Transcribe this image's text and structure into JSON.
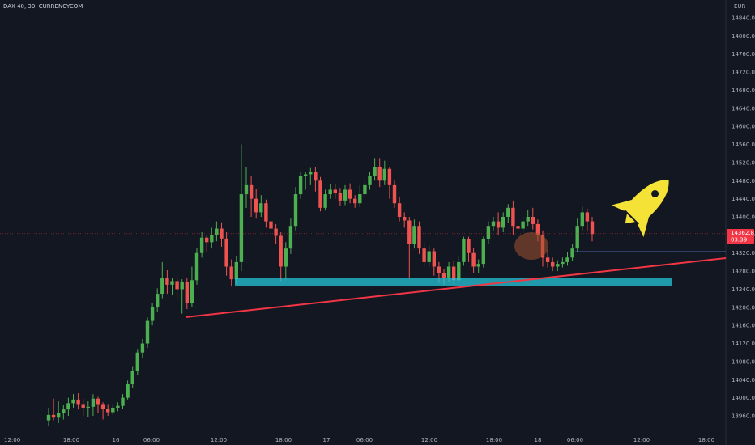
{
  "header": {
    "title": "DAX 40, 30, CURRENCYCOM",
    "currency": "EUR"
  },
  "price_tag": {
    "price": "14362.8",
    "countdown": "03:39"
  },
  "colors": {
    "background": "#131722",
    "up": "#26a69a",
    "up_body": "#4caf50",
    "down": "#ef5350",
    "trendline": "#f23645",
    "zone": "#26c6da",
    "marker": "#f5e236",
    "circle": "#a0522d"
  },
  "chart_data": {
    "type": "candlestick",
    "title": "DAX 40, 30, CURRENCYCOM",
    "ylabel": "EUR",
    "ylim": [
      13940,
      14860
    ],
    "y_ticks": [
      "14840.0",
      "14800.0",
      "14760.0",
      "14720.0",
      "14680.0",
      "14640.0",
      "14600.0",
      "14560.0",
      "14520.0",
      "14480.0",
      "14440.0",
      "14400.0",
      "14360.0",
      "14320.0",
      "14280.0",
      "14240.0",
      "14200.0",
      "14160.0",
      "14120.0",
      "14080.0",
      "14040.0",
      "14000.0",
      "13960.0"
    ],
    "x_ticks": [
      "12:00",
      "18:00",
      "16",
      "06:00",
      "12:00",
      "18:00",
      "17",
      "06:00",
      "12:00",
      "18:00",
      "18",
      "06:00",
      "12:00",
      "18:00"
    ],
    "candles": [
      [
        13950,
        13962,
        13938,
        13978
      ],
      [
        13962,
        13956,
        13950,
        13998
      ],
      [
        13956,
        13966,
        13944,
        13992
      ],
      [
        13966,
        13974,
        13952,
        13984
      ],
      [
        13974,
        13988,
        13960,
        14000
      ],
      [
        13988,
        13996,
        13978,
        14008
      ],
      [
        13996,
        13986,
        13974,
        14010
      ],
      [
        13986,
        13978,
        13960,
        13998
      ],
      [
        13978,
        13980,
        13958,
        13992
      ],
      [
        13980,
        13998,
        13960,
        14008
      ],
      [
        13998,
        13986,
        13966,
        14002
      ],
      [
        13986,
        13976,
        13952,
        13990
      ],
      [
        13976,
        13968,
        13960,
        13986
      ],
      [
        13968,
        13978,
        13962,
        13986
      ],
      [
        13978,
        13982,
        13970,
        13990
      ],
      [
        13982,
        14000,
        13976,
        14008
      ],
      [
        14000,
        14030,
        13996,
        14038
      ],
      [
        14030,
        14060,
        14022,
        14070
      ],
      [
        14060,
        14100,
        14050,
        14108
      ],
      [
        14100,
        14120,
        14088,
        14130
      ],
      [
        14120,
        14170,
        14110,
        14178
      ],
      [
        14170,
        14200,
        14160,
        14210
      ],
      [
        14200,
        14230,
        14190,
        14242
      ],
      [
        14230,
        14264,
        14220,
        14300
      ],
      [
        14264,
        14250,
        14230,
        14282
      ],
      [
        14250,
        14258,
        14228,
        14264
      ],
      [
        14258,
        14240,
        14220,
        14268
      ],
      [
        14240,
        14256,
        14186,
        14262
      ],
      [
        14256,
        14210,
        14196,
        14264
      ],
      [
        14210,
        14260,
        14200,
        14290
      ],
      [
        14260,
        14320,
        14250,
        14332
      ],
      [
        14320,
        14354,
        14310,
        14366
      ],
      [
        14354,
        14344,
        14324,
        14360
      ],
      [
        14344,
        14360,
        14330,
        14376
      ],
      [
        14360,
        14374,
        14346,
        14390
      ],
      [
        14374,
        14352,
        14334,
        14388
      ],
      [
        14352,
        14290,
        14270,
        14366
      ],
      [
        14290,
        14262,
        14246,
        14306
      ],
      [
        14262,
        14300,
        14252,
        14314
      ],
      [
        14300,
        14450,
        14280,
        14560
      ],
      [
        14450,
        14470,
        14420,
        14510
      ],
      [
        14470,
        14440,
        14400,
        14490
      ],
      [
        14440,
        14410,
        14396,
        14462
      ],
      [
        14410,
        14430,
        14400,
        14448
      ],
      [
        14430,
        14390,
        14376,
        14438
      ],
      [
        14390,
        14374,
        14360,
        14400
      ],
      [
        14374,
        14358,
        14340,
        14384
      ],
      [
        14358,
        14290,
        14258,
        14366
      ],
      [
        14290,
        14330,
        14262,
        14344
      ],
      [
        14330,
        14380,
        14318,
        14396
      ],
      [
        14380,
        14450,
        14370,
        14466
      ],
      [
        14450,
        14490,
        14440,
        14500
      ],
      [
        14490,
        14494,
        14460,
        14500
      ],
      [
        14494,
        14500,
        14470,
        14508
      ],
      [
        14500,
        14480,
        14456,
        14510
      ],
      [
        14480,
        14420,
        14412,
        14488
      ],
      [
        14420,
        14450,
        14414,
        14460
      ],
      [
        14450,
        14460,
        14440,
        14472
      ],
      [
        14460,
        14452,
        14440,
        14472
      ],
      [
        14452,
        14436,
        14424,
        14464
      ],
      [
        14436,
        14460,
        14426,
        14470
      ],
      [
        14460,
        14440,
        14430,
        14474
      ],
      [
        14440,
        14430,
        14420,
        14448
      ],
      [
        14430,
        14450,
        14422,
        14470
      ],
      [
        14450,
        14470,
        14444,
        14480
      ],
      [
        14470,
        14490,
        14460,
        14500
      ],
      [
        14490,
        14510,
        14480,
        14530
      ],
      [
        14510,
        14480,
        14466,
        14530
      ],
      [
        14480,
        14506,
        14470,
        14524
      ],
      [
        14506,
        14470,
        14440,
        14510
      ],
      [
        14470,
        14430,
        14420,
        14480
      ],
      [
        14430,
        14400,
        14390,
        14444
      ],
      [
        14400,
        14392,
        14376,
        14410
      ],
      [
        14392,
        14340,
        14266,
        14400
      ],
      [
        14340,
        14380,
        14330,
        14394
      ],
      [
        14380,
        14330,
        14318,
        14390
      ],
      [
        14330,
        14300,
        14290,
        14344
      ],
      [
        14300,
        14324,
        14290,
        14336
      ],
      [
        14324,
        14290,
        14270,
        14330
      ],
      [
        14290,
        14276,
        14254,
        14300
      ],
      [
        14276,
        14266,
        14250,
        14284
      ],
      [
        14266,
        14290,
        14256,
        14300
      ],
      [
        14290,
        14260,
        14250,
        14304
      ],
      [
        14260,
        14300,
        14254,
        14312
      ],
      [
        14300,
        14350,
        14292,
        14356
      ],
      [
        14350,
        14320,
        14300,
        14356
      ],
      [
        14320,
        14290,
        14276,
        14332
      ],
      [
        14290,
        14296,
        14276,
        14306
      ],
      [
        14296,
        14350,
        14288,
        14356
      ],
      [
        14350,
        14380,
        14340,
        14390
      ],
      [
        14380,
        14390,
        14370,
        14400
      ],
      [
        14390,
        14376,
        14360,
        14410
      ],
      [
        14376,
        14400,
        14366,
        14410
      ],
      [
        14400,
        14420,
        14386,
        14428
      ],
      [
        14420,
        14380,
        14360,
        14436
      ],
      [
        14380,
        14374,
        14358,
        14394
      ],
      [
        14374,
        14390,
        14364,
        14400
      ],
      [
        14390,
        14400,
        14380,
        14416
      ],
      [
        14400,
        14384,
        14372,
        14420
      ],
      [
        14384,
        14360,
        14346,
        14394
      ],
      [
        14360,
        14310,
        14290,
        14370
      ],
      [
        14310,
        14300,
        14288,
        14326
      ],
      [
        14300,
        14290,
        14280,
        14310
      ],
      [
        14290,
        14296,
        14280,
        14304
      ],
      [
        14296,
        14300,
        14288,
        14310
      ],
      [
        14300,
        14310,
        14292,
        14322
      ],
      [
        14310,
        14330,
        14302,
        14340
      ],
      [
        14330,
        14380,
        14322,
        14396
      ],
      [
        14380,
        14410,
        14370,
        14422
      ],
      [
        14410,
        14390,
        14368,
        14418
      ],
      [
        14390,
        14362,
        14346,
        14400
      ]
    ]
  }
}
